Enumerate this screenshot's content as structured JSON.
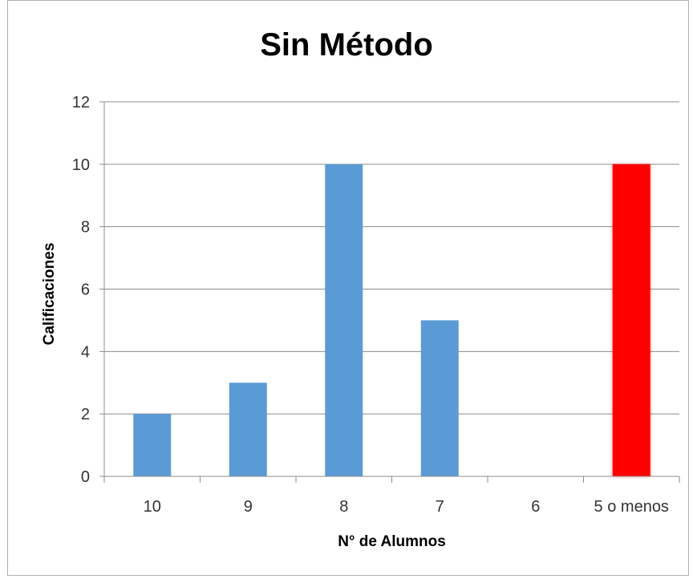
{
  "chart_data": {
    "type": "bar",
    "title": "Sin Método",
    "xlabel": "N° de Alumnos",
    "ylabel": "Calificaciones",
    "categories": [
      "10",
      "9",
      "8",
      "7",
      "6",
      "5 o menos"
    ],
    "values": [
      2,
      3,
      10,
      5,
      0,
      10
    ],
    "bar_colors": [
      "#5b9bd5",
      "#5b9bd5",
      "#5b9bd5",
      "#5b9bd5",
      "#5b9bd5",
      "#ff0000"
    ],
    "ylim": [
      0,
      12
    ],
    "yticks": [
      0,
      2,
      4,
      6,
      8,
      10,
      12
    ],
    "grid": true,
    "legend": "none"
  }
}
